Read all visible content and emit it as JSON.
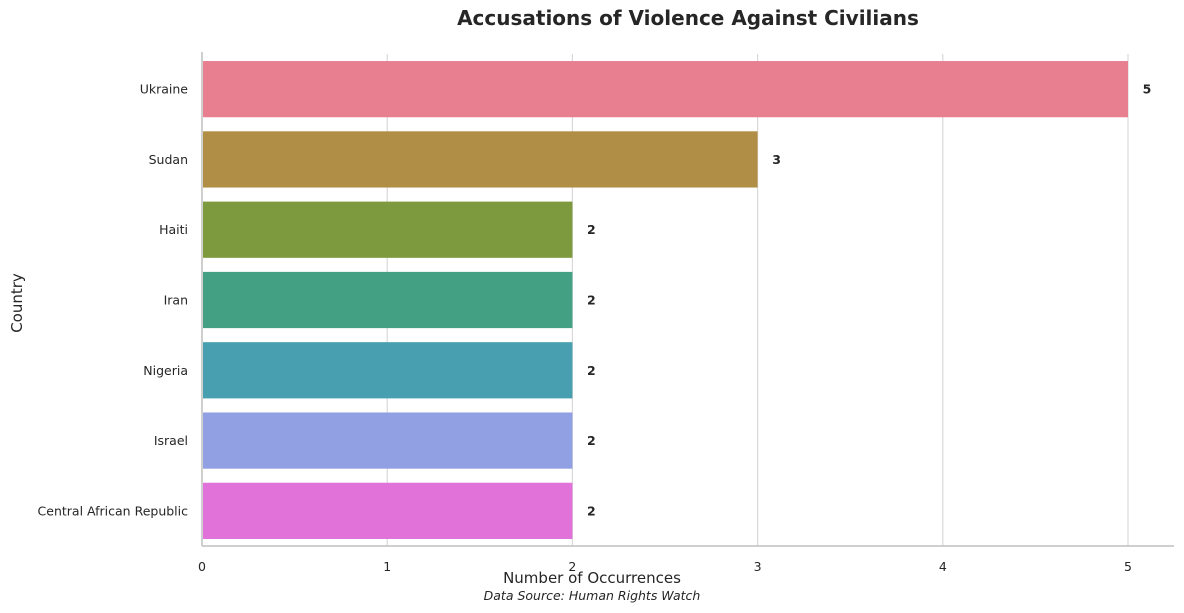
{
  "chart_data": {
    "type": "bar",
    "orientation": "horizontal",
    "title": "Accusations of Violence Against Civilians",
    "xlabel": "Number of Occurrences",
    "ylabel": "Country",
    "source_note": "Data Source: Human Rights Watch",
    "categories": [
      "Ukraine",
      "Sudan",
      "Haiti",
      "Iran",
      "Nigeria",
      "Israel",
      "Central African Republic"
    ],
    "values": [
      5,
      3,
      2,
      2,
      2,
      2,
      2
    ],
    "colors": [
      "#e77f91",
      "#b18e45",
      "#7e9a3e",
      "#43a083",
      "#489faf",
      "#91a0e3",
      "#e072da"
    ],
    "xlim": [
      0,
      5.25
    ],
    "xticks": [
      0,
      1,
      2,
      3,
      4,
      5
    ],
    "grid": "vertical",
    "legend": "none"
  }
}
